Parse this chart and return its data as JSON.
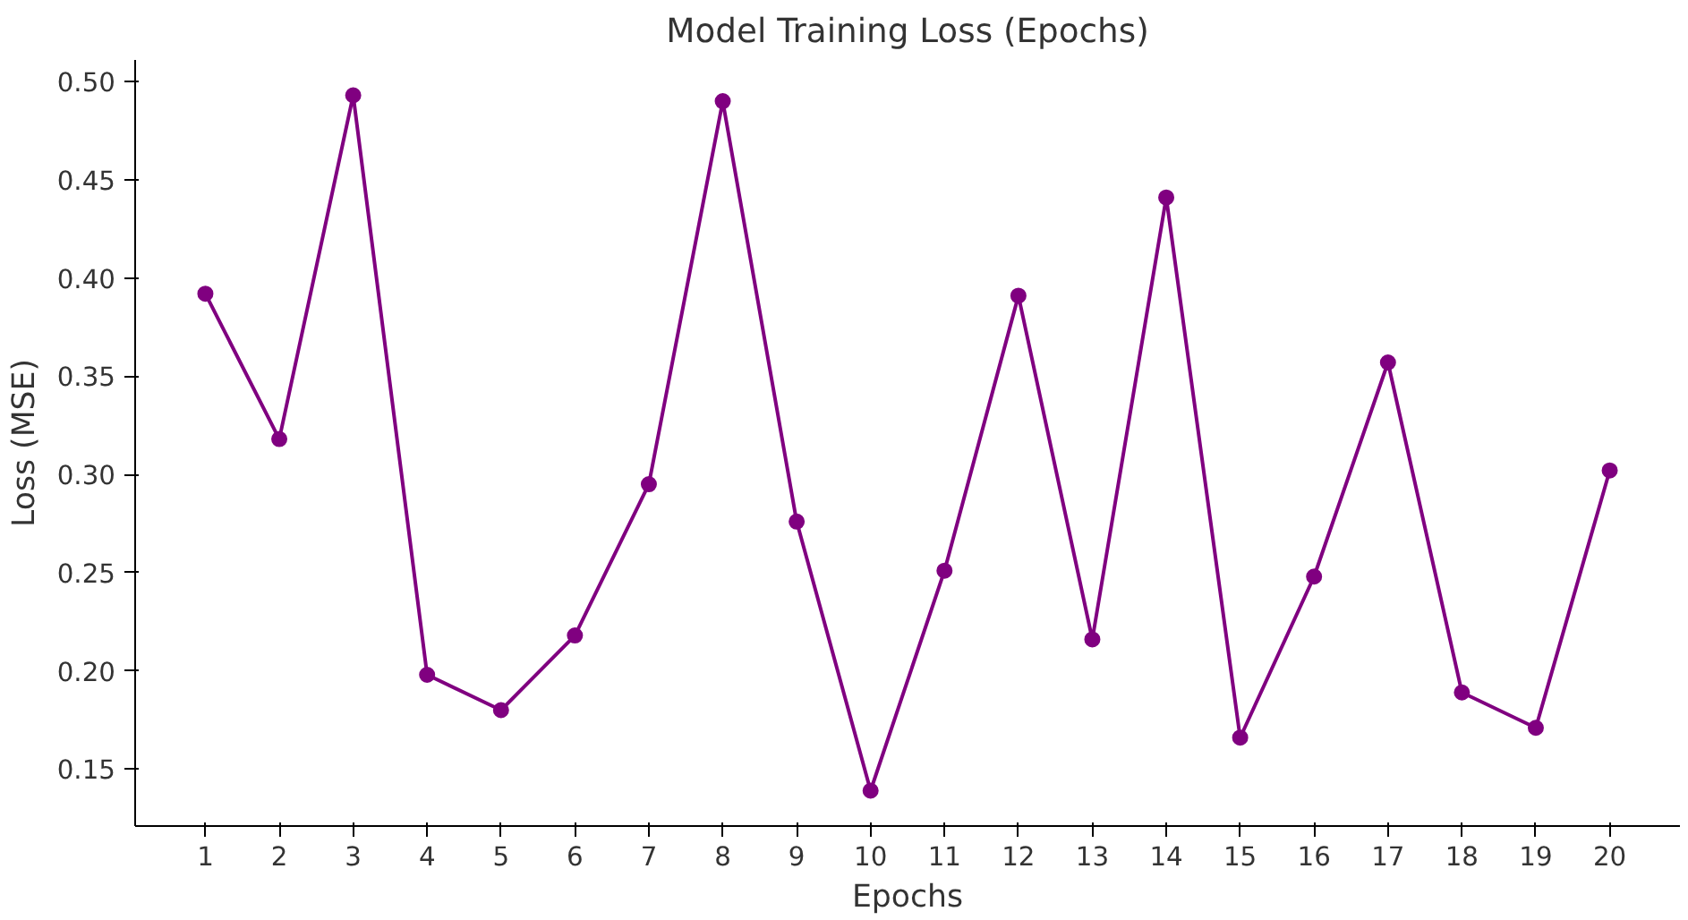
{
  "chart_data": {
    "type": "line",
    "title": "Model Training Loss (Epochs)",
    "xlabel": "Epochs",
    "ylabel": "Loss (MSE)",
    "x": [
      1,
      2,
      3,
      4,
      5,
      6,
      7,
      8,
      9,
      10,
      11,
      12,
      13,
      14,
      15,
      16,
      17,
      18,
      19,
      20
    ],
    "series": [
      {
        "color": "#800080",
        "values": [
          0.392,
          0.318,
          0.493,
          0.198,
          0.18,
          0.218,
          0.295,
          0.49,
          0.276,
          0.139,
          0.251,
          0.391,
          0.216,
          0.441,
          0.166,
          0.248,
          0.357,
          0.189,
          0.171,
          0.302
        ]
      }
    ],
    "xlim": [
      0.05,
      20.95
    ],
    "ylim": [
      0.121,
      0.511
    ],
    "xticks": [
      1,
      2,
      3,
      4,
      5,
      6,
      7,
      8,
      9,
      10,
      11,
      12,
      13,
      14,
      15,
      16,
      17,
      18,
      19,
      20
    ],
    "yticks": [
      {
        "value": 0.15,
        "label": "0.15"
      },
      {
        "value": 0.2,
        "label": "0.20"
      },
      {
        "value": 0.25,
        "label": "0.25"
      },
      {
        "value": 0.3,
        "label": "0.30"
      },
      {
        "value": 0.35,
        "label": "0.35"
      },
      {
        "value": 0.4,
        "label": "0.40"
      },
      {
        "value": 0.45,
        "label": "0.45"
      },
      {
        "value": 0.5,
        "label": "0.50"
      }
    ],
    "marker": "circle",
    "line_style": "solid",
    "grid": false
  }
}
